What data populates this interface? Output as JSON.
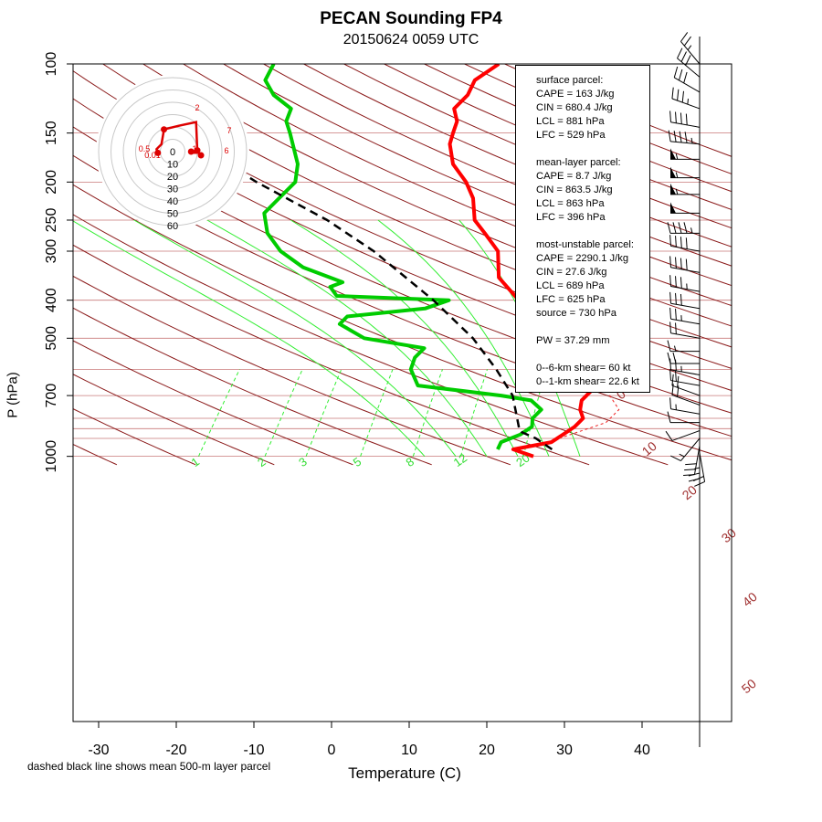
{
  "title": "PECAN Sounding FP4",
  "subtitle": "20150624 0059 UTC",
  "xlabel": "Temperature (C)",
  "ylabel": "P (hPa)",
  "footnote": "dashed black line shows mean 500-m layer parcel",
  "info": {
    "surface_header": "surface parcel:",
    "surface_cape": "CAPE = 163 J/kg",
    "surface_cin": "CIN = 680.4 J/kg",
    "surface_lcl": "LCL = 881 hPa",
    "surface_lfc": "LFC = 529 hPa",
    "ml_header": "mean-layer parcel:",
    "ml_cape": "CAPE = 8.7 J/kg",
    "ml_cin": "CIN = 863.5 J/kg",
    "ml_lcl": "LCL = 863 hPa",
    "ml_lfc": "LFC = 396 hPa",
    "mu_header": "most-unstable parcel:",
    "mu_cape": "CAPE = 2290.1 J/kg",
    "mu_cin": "CIN = 27.6 J/kg",
    "mu_lcl": "LCL = 689 hPa",
    "mu_lfc": "LFC = 625 hPa",
    "mu_source": "source = 730 hPa",
    "pw": "PW =  37.29 mm",
    "shear6": "0--6-km shear= 60 kt",
    "shear1": "0--1-km shear= 22.6 kt"
  },
  "colors": {
    "temperature": "#ff0000",
    "dewpoint": "#00cc00",
    "parcel": "#000000",
    "dry_adiabat": "#8b1a1a",
    "isobar": "#c87878",
    "mixing_ratio": "#33ee33",
    "hodograph": "#dd0000"
  },
  "chart_data": {
    "type": "skew-t",
    "xlim": [
      -34,
      44
    ],
    "ylim": [
      1050,
      100
    ],
    "y_scale": "log",
    "x_ticks": [
      "-30",
      "-20",
      "-10",
      "0",
      "10",
      "20",
      "30",
      "40"
    ],
    "p_ticks": [
      "100",
      "150",
      "200",
      "250",
      "300",
      "400",
      "500",
      "700",
      "1000"
    ],
    "dry_adiabat_labels": [
      "0",
      "10",
      "20",
      "30",
      "40",
      "50"
    ],
    "mixing_ratio_labels": [
      "1",
      "2",
      "3",
      "5",
      "8",
      "12",
      "20"
    ],
    "temperature_profile": [
      {
        "p": 1000,
        "t": 26
      },
      {
        "p": 960,
        "t": 22.5
      },
      {
        "p": 920,
        "t": 26.5
      },
      {
        "p": 880,
        "t": 27
      },
      {
        "p": 840,
        "t": 27.5
      },
      {
        "p": 800,
        "t": 27.5
      },
      {
        "p": 760,
        "t": 26
      },
      {
        "p": 720,
        "t": 25
      },
      {
        "p": 680,
        "t": 25
      },
      {
        "p": 640,
        "t": 25
      },
      {
        "p": 600,
        "t": 21
      },
      {
        "p": 560,
        "t": 17.5
      },
      {
        "p": 520,
        "t": 14
      },
      {
        "p": 500,
        "t": 13
      },
      {
        "p": 450,
        "t": 10
      },
      {
        "p": 400,
        "t": 4
      },
      {
        "p": 350,
        "t": -1.5
      },
      {
        "p": 300,
        "t": -5
      },
      {
        "p": 270,
        "t": -9
      },
      {
        "p": 250,
        "t": -12
      },
      {
        "p": 220,
        "t": -15
      },
      {
        "p": 200,
        "t": -18
      },
      {
        "p": 180,
        "t": -22
      },
      {
        "p": 160,
        "t": -25
      },
      {
        "p": 150,
        "t": -26
      },
      {
        "p": 140,
        "t": -27
      },
      {
        "p": 130,
        "t": -29
      },
      {
        "p": 120,
        "t": -29
      },
      {
        "p": 110,
        "t": -30
      },
      {
        "p": 100,
        "t": -29
      }
    ],
    "dewpoint_profile": [
      {
        "p": 960,
        "t": 20.5
      },
      {
        "p": 920,
        "t": 20
      },
      {
        "p": 880,
        "t": 21.5
      },
      {
        "p": 840,
        "t": 22
      },
      {
        "p": 800,
        "t": 21
      },
      {
        "p": 760,
        "t": 21
      },
      {
        "p": 720,
        "t": 18.5
      },
      {
        "p": 700,
        "t": 14
      },
      {
        "p": 660,
        "t": 2
      },
      {
        "p": 600,
        "t": -1
      },
      {
        "p": 560,
        "t": -2
      },
      {
        "p": 530,
        "t": -2
      },
      {
        "p": 500,
        "t": -11
      },
      {
        "p": 460,
        "t": -16
      },
      {
        "p": 440,
        "t": -16
      },
      {
        "p": 420,
        "t": -7
      },
      {
        "p": 400,
        "t": -5
      },
      {
        "p": 390,
        "t": -20
      },
      {
        "p": 370,
        "t": -22
      },
      {
        "p": 360,
        "t": -21
      },
      {
        "p": 330,
        "t": -28
      },
      {
        "p": 300,
        "t": -33
      },
      {
        "p": 270,
        "t": -37
      },
      {
        "p": 240,
        "t": -40
      },
      {
        "p": 220,
        "t": -40
      },
      {
        "p": 200,
        "t": -40
      },
      {
        "p": 180,
        "t": -42
      },
      {
        "p": 150,
        "t": -47
      },
      {
        "p": 140,
        "t": -49
      },
      {
        "p": 130,
        "t": -50
      },
      {
        "p": 120,
        "t": -54
      },
      {
        "p": 110,
        "t": -57
      },
      {
        "p": 100,
        "t": -58
      }
    ],
    "parcel_profile": [
      {
        "p": 960,
        "t": 27.5
      },
      {
        "p": 900,
        "t": 24
      },
      {
        "p": 863,
        "t": 21
      },
      {
        "p": 700,
        "t": 15.5
      },
      {
        "p": 600,
        "t": 10
      },
      {
        "p": 500,
        "t": 3
      },
      {
        "p": 400,
        "t": -7
      },
      {
        "p": 300,
        "t": -21
      },
      {
        "p": 250,
        "t": -31
      },
      {
        "p": 200,
        "t": -45
      },
      {
        "p": 180,
        "t": -51
      }
    ],
    "hodograph": {
      "ring_labels": [
        "0",
        "10",
        "20",
        "30",
        "40",
        "50",
        "60"
      ],
      "point_labels": [
        "0.01",
        "0.5",
        "1",
        "2",
        "6",
        "7"
      ],
      "points": [
        {
          "u": 23,
          "v": -3
        },
        {
          "u": 21,
          "v": -1
        },
        {
          "u": 16,
          "v": -1
        },
        {
          "u": 15,
          "v": 0
        },
        {
          "u": 16,
          "v": 1
        },
        {
          "u": 18,
          "v": 0
        },
        {
          "u": 20,
          "v": 1
        },
        {
          "u": 19,
          "v": 24
        },
        {
          "u": 5,
          "v": 21
        },
        {
          "u": -7,
          "v": 18
        },
        {
          "u": -9,
          "v": 6
        },
        {
          "u": -13,
          "v": 2
        },
        {
          "u": -12,
          "v": -1
        }
      ]
    },
    "wind_barbs": [
      {
        "p": 980,
        "dir": 170,
        "spd": 20
      },
      {
        "p": 960,
        "dir": 180,
        "spd": 25
      },
      {
        "p": 940,
        "dir": 190,
        "spd": 30
      },
      {
        "p": 900,
        "dir": 220,
        "spd": 15
      },
      {
        "p": 860,
        "dir": 250,
        "spd": 12
      },
      {
        "p": 820,
        "dir": 270,
        "spd": 12
      },
      {
        "p": 780,
        "dir": 280,
        "spd": 15
      },
      {
        "p": 740,
        "dir": 290,
        "spd": 20
      },
      {
        "p": 700,
        "dir": 290,
        "spd": 20
      },
      {
        "p": 660,
        "dir": 280,
        "spd": 20
      },
      {
        "p": 620,
        "dir": 280,
        "spd": 25
      },
      {
        "p": 580,
        "dir": 270,
        "spd": 20
      },
      {
        "p": 540,
        "dir": 270,
        "spd": 15
      },
      {
        "p": 500,
        "dir": 280,
        "spd": 20
      },
      {
        "p": 460,
        "dir": 280,
        "spd": 25
      },
      {
        "p": 420,
        "dir": 280,
        "spd": 30
      },
      {
        "p": 380,
        "dir": 280,
        "spd": 35
      },
      {
        "p": 340,
        "dir": 280,
        "spd": 40
      },
      {
        "p": 300,
        "dir": 280,
        "spd": 40
      },
      {
        "p": 270,
        "dir": 270,
        "spd": 45
      },
      {
        "p": 240,
        "dir": 270,
        "spd": 50
      },
      {
        "p": 215,
        "dir": 270,
        "spd": 55
      },
      {
        "p": 195,
        "dir": 270,
        "spd": 55
      },
      {
        "p": 175,
        "dir": 270,
        "spd": 55
      },
      {
        "p": 160,
        "dir": 275,
        "spd": 45
      },
      {
        "p": 145,
        "dir": 280,
        "spd": 40
      },
      {
        "p": 130,
        "dir": 290,
        "spd": 35
      },
      {
        "p": 118,
        "dir": 300,
        "spd": 30
      },
      {
        "p": 108,
        "dir": 310,
        "spd": 30
      },
      {
        "p": 100,
        "dir": 320,
        "spd": 25
      }
    ]
  }
}
